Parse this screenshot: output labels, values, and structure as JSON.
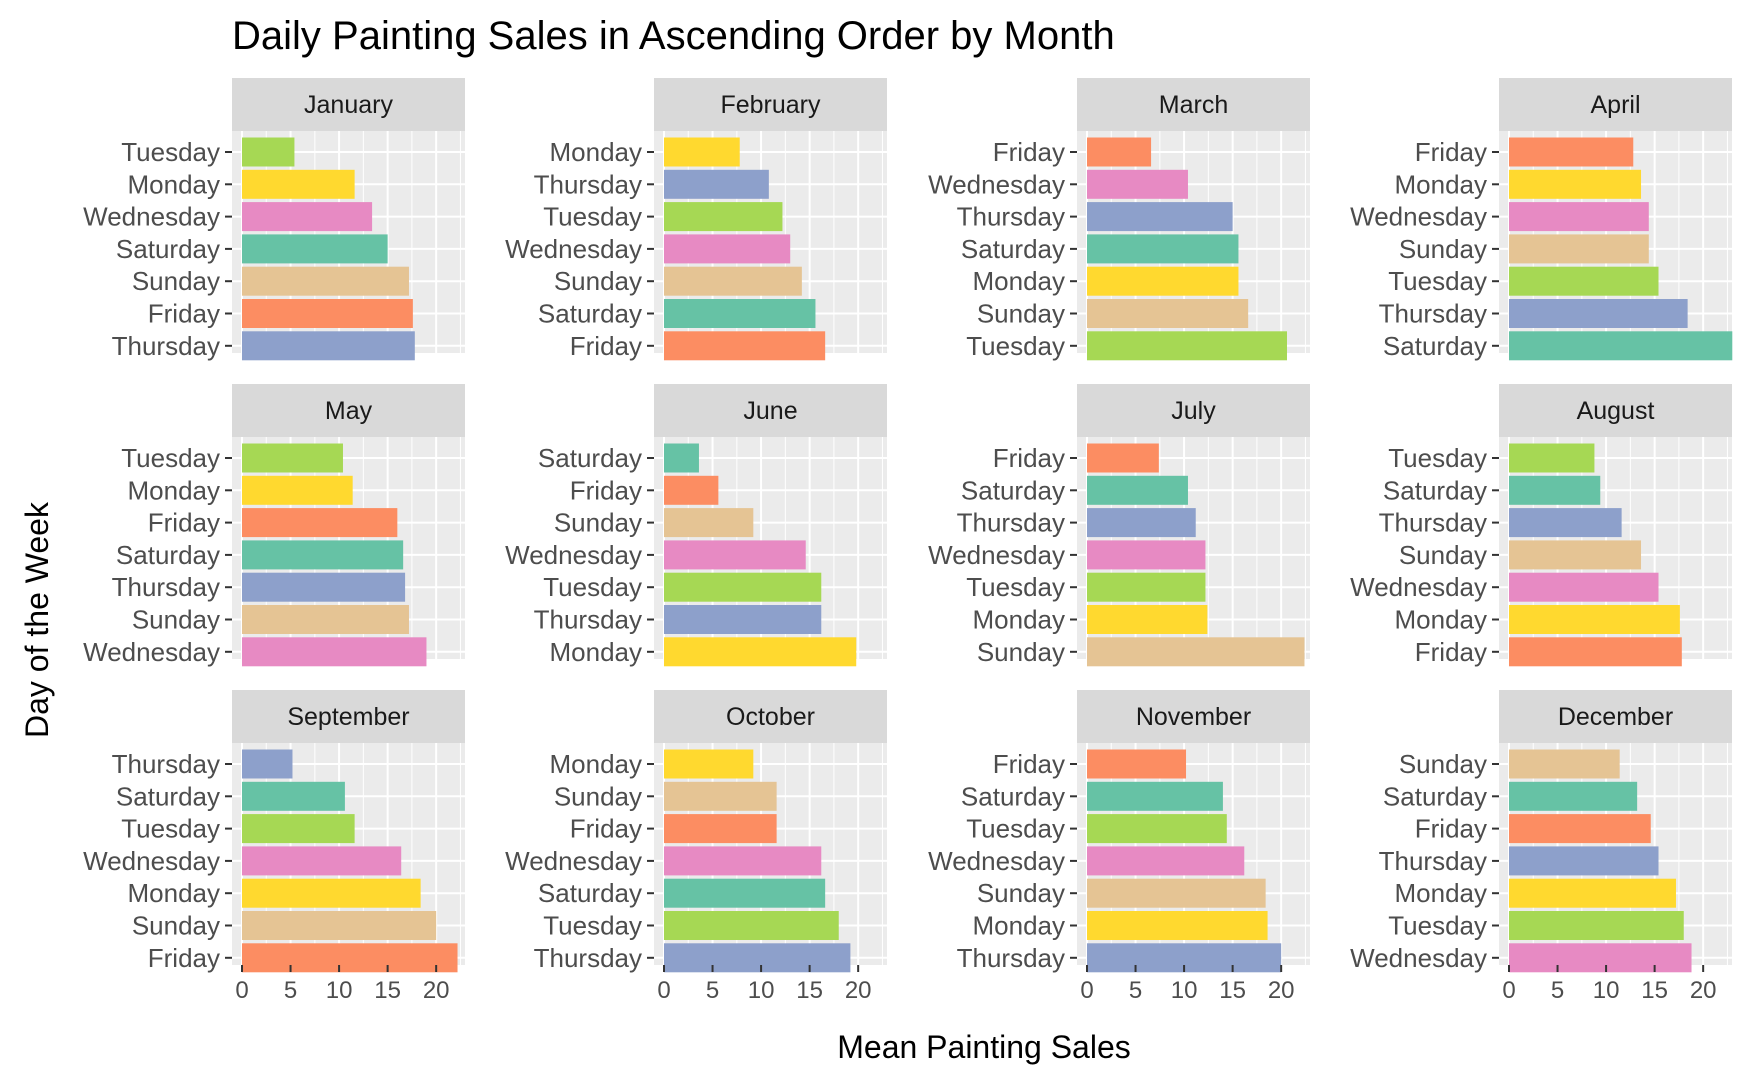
{
  "chart_data": {
    "type": "bar",
    "orientation": "horizontal",
    "title": "Daily Painting Sales in Ascending Order by Month",
    "xlabel": "Mean Painting Sales",
    "ylabel": "Day of the Week",
    "xlim": [
      0,
      24
    ],
    "x_ticks": [
      0,
      5,
      10,
      15,
      20
    ],
    "grid": true,
    "facet_layout": {
      "rows": 3,
      "cols": 4
    },
    "day_colors": {
      "Sunday": "#E5C494",
      "Monday": "#FFD92F",
      "Tuesday": "#A6D854",
      "Wednesday": "#E78AC3",
      "Thursday": "#8DA0CB",
      "Friday": "#FC8D62",
      "Saturday": "#66C2A5"
    },
    "panels": [
      {
        "month": "January",
        "bars": [
          {
            "day": "Tuesday",
            "value": 5.4
          },
          {
            "day": "Monday",
            "value": 11.6
          },
          {
            "day": "Wednesday",
            "value": 13.4
          },
          {
            "day": "Saturday",
            "value": 15.0
          },
          {
            "day": "Sunday",
            "value": 17.2
          },
          {
            "day": "Friday",
            "value": 17.6
          },
          {
            "day": "Thursday",
            "value": 17.8
          }
        ]
      },
      {
        "month": "February",
        "bars": [
          {
            "day": "Monday",
            "value": 7.8
          },
          {
            "day": "Thursday",
            "value": 10.8
          },
          {
            "day": "Tuesday",
            "value": 12.2
          },
          {
            "day": "Wednesday",
            "value": 13.0
          },
          {
            "day": "Sunday",
            "value": 14.2
          },
          {
            "day": "Saturday",
            "value": 15.6
          },
          {
            "day": "Friday",
            "value": 16.6
          }
        ]
      },
      {
        "month": "March",
        "bars": [
          {
            "day": "Friday",
            "value": 6.6
          },
          {
            "day": "Wednesday",
            "value": 10.4
          },
          {
            "day": "Thursday",
            "value": 15.0
          },
          {
            "day": "Saturday",
            "value": 15.6
          },
          {
            "day": "Monday",
            "value": 15.6
          },
          {
            "day": "Sunday",
            "value": 16.6
          },
          {
            "day": "Tuesday",
            "value": 20.6
          }
        ]
      },
      {
        "month": "April",
        "bars": [
          {
            "day": "Friday",
            "value": 12.8
          },
          {
            "day": "Monday",
            "value": 13.6
          },
          {
            "day": "Wednesday",
            "value": 14.4
          },
          {
            "day": "Sunday",
            "value": 14.4
          },
          {
            "day": "Tuesday",
            "value": 15.4
          },
          {
            "day": "Thursday",
            "value": 18.4
          },
          {
            "day": "Saturday",
            "value": 23.0
          }
        ]
      },
      {
        "month": "May",
        "bars": [
          {
            "day": "Tuesday",
            "value": 10.4
          },
          {
            "day": "Monday",
            "value": 11.4
          },
          {
            "day": "Friday",
            "value": 16.0
          },
          {
            "day": "Saturday",
            "value": 16.6
          },
          {
            "day": "Thursday",
            "value": 16.8
          },
          {
            "day": "Sunday",
            "value": 17.2
          },
          {
            "day": "Wednesday",
            "value": 19.0
          }
        ]
      },
      {
        "month": "June",
        "bars": [
          {
            "day": "Saturday",
            "value": 3.6
          },
          {
            "day": "Friday",
            "value": 5.6
          },
          {
            "day": "Sunday",
            "value": 9.2
          },
          {
            "day": "Wednesday",
            "value": 14.6
          },
          {
            "day": "Tuesday",
            "value": 16.2
          },
          {
            "day": "Thursday",
            "value": 16.2
          },
          {
            "day": "Monday",
            "value": 19.8
          }
        ]
      },
      {
        "month": "July",
        "bars": [
          {
            "day": "Friday",
            "value": 7.4
          },
          {
            "day": "Saturday",
            "value": 10.4
          },
          {
            "day": "Thursday",
            "value": 11.2
          },
          {
            "day": "Wednesday",
            "value": 12.2
          },
          {
            "day": "Tuesday",
            "value": 12.2
          },
          {
            "day": "Monday",
            "value": 12.4
          },
          {
            "day": "Sunday",
            "value": 22.4
          }
        ]
      },
      {
        "month": "August",
        "bars": [
          {
            "day": "Tuesday",
            "value": 8.8
          },
          {
            "day": "Saturday",
            "value": 9.4
          },
          {
            "day": "Thursday",
            "value": 11.6
          },
          {
            "day": "Sunday",
            "value": 13.6
          },
          {
            "day": "Wednesday",
            "value": 15.4
          },
          {
            "day": "Monday",
            "value": 17.6
          },
          {
            "day": "Friday",
            "value": 17.8
          }
        ]
      },
      {
        "month": "September",
        "bars": [
          {
            "day": "Thursday",
            "value": 5.2
          },
          {
            "day": "Saturday",
            "value": 10.6
          },
          {
            "day": "Tuesday",
            "value": 11.6
          },
          {
            "day": "Wednesday",
            "value": 16.4
          },
          {
            "day": "Monday",
            "value": 18.4
          },
          {
            "day": "Sunday",
            "value": 20.0
          },
          {
            "day": "Friday",
            "value": 22.2
          }
        ]
      },
      {
        "month": "October",
        "bars": [
          {
            "day": "Monday",
            "value": 9.2
          },
          {
            "day": "Sunday",
            "value": 11.6
          },
          {
            "day": "Friday",
            "value": 11.6
          },
          {
            "day": "Wednesday",
            "value": 16.2
          },
          {
            "day": "Saturday",
            "value": 16.6
          },
          {
            "day": "Tuesday",
            "value": 18.0
          },
          {
            "day": "Thursday",
            "value": 19.2
          }
        ]
      },
      {
        "month": "November",
        "bars": [
          {
            "day": "Friday",
            "value": 10.2
          },
          {
            "day": "Saturday",
            "value": 14.0
          },
          {
            "day": "Tuesday",
            "value": 14.4
          },
          {
            "day": "Wednesday",
            "value": 16.2
          },
          {
            "day": "Sunday",
            "value": 18.4
          },
          {
            "day": "Monday",
            "value": 18.6
          },
          {
            "day": "Thursday",
            "value": 20.0
          }
        ]
      },
      {
        "month": "December",
        "bars": [
          {
            "day": "Sunday",
            "value": 11.4
          },
          {
            "day": "Saturday",
            "value": 13.2
          },
          {
            "day": "Friday",
            "value": 14.6
          },
          {
            "day": "Thursday",
            "value": 15.4
          },
          {
            "day": "Monday",
            "value": 17.2
          },
          {
            "day": "Tuesday",
            "value": 18.0
          },
          {
            "day": "Wednesday",
            "value": 18.8
          }
        ]
      }
    ]
  }
}
